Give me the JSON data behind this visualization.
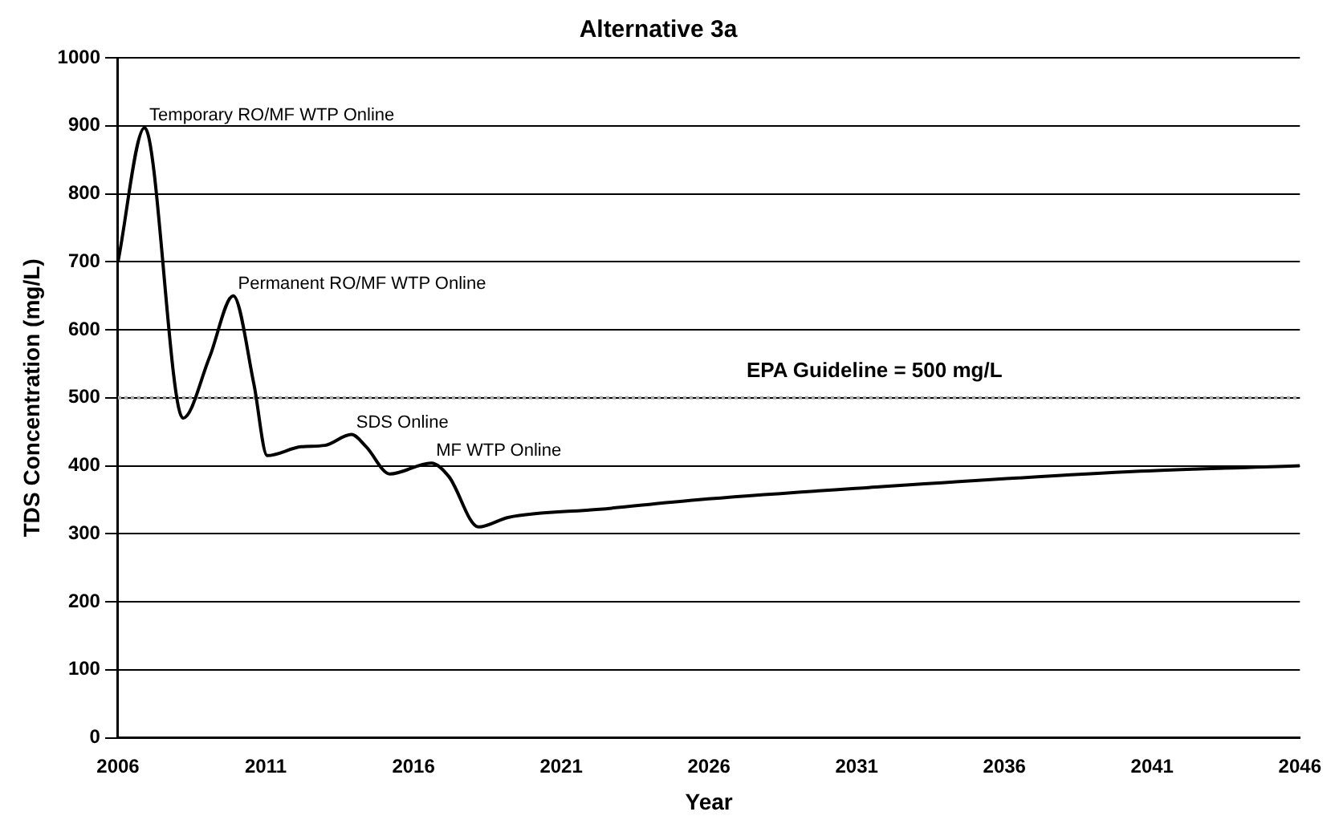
{
  "chart_data": {
    "type": "line",
    "title": "Alternative 3a",
    "xlabel": "Year",
    "ylabel": "TDS Concentration (mg/L)",
    "x": [
      2006,
      2006.9,
      2008.2,
      2009.1,
      2009.9,
      2010.6,
      2011.05,
      2012.2,
      2013.0,
      2013.9,
      2014.4,
      2015.2,
      2016.6,
      2017.2,
      2018.2,
      2019.2,
      2022.3,
      2025.6,
      2031.4,
      2040.6,
      2046
    ],
    "series": [
      {
        "color": "#000000",
        "values": [
          700,
          897,
          470,
          560,
          650,
          520,
          415,
          428,
          430,
          446,
          428,
          388,
          404,
          384,
          310,
          324,
          336,
          350,
          368,
          392,
          400
        ]
      }
    ],
    "xlim": [
      2006,
      2046
    ],
    "xticks": [
      2006,
      2011,
      2016,
      2021,
      2026,
      2031,
      2036,
      2041,
      2046
    ],
    "ylim": [
      0,
      1000
    ],
    "yticks": [
      0,
      100,
      200,
      300,
      400,
      500,
      600,
      700,
      800,
      900,
      1000
    ],
    "grid": "y",
    "legend": false,
    "marker": "none",
    "line_style": "solid",
    "ref_lines": [
      {
        "axis": "y",
        "value": 500,
        "label": "EPA Guideline = 500 mg/L",
        "color": "#aaaaaa",
        "line_style": "dotted"
      }
    ],
    "annotations": [
      {
        "text": "Temporary RO/MF WTP Online",
        "x": 2006.9,
        "y": 897
      },
      {
        "text": "Permanent RO/MF WTP Online",
        "x": 2009.9,
        "y": 650
      },
      {
        "text": "SDS Online",
        "x": 2013.9,
        "y": 446
      },
      {
        "text": "MF WTP Online",
        "x": 2016.6,
        "y": 404
      }
    ]
  }
}
